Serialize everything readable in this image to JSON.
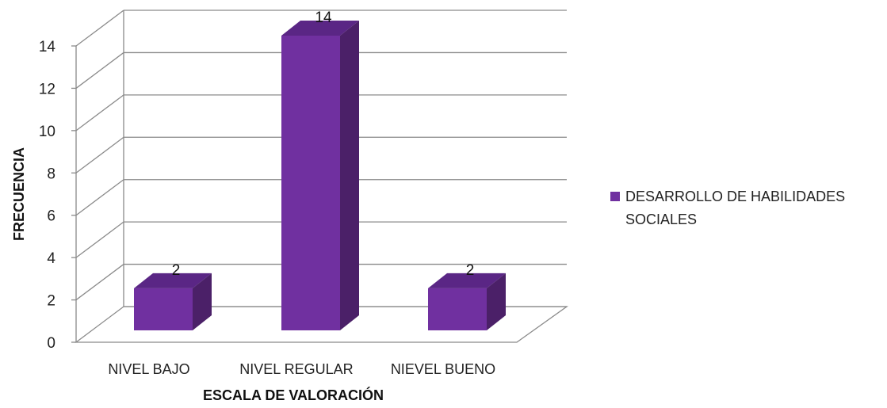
{
  "chart_data": {
    "type": "bar",
    "title": "",
    "xlabel": "ESCALA DE VALORACIÓN",
    "ylabel": "FRECUENCIA",
    "categories": [
      "NIVEL BAJO",
      "NIVEL REGULAR",
      "NIEVEL BUENO"
    ],
    "series": [
      {
        "name": "DESARROLLO DE HABILIDADES SOCIALES",
        "values": [
          2,
          14,
          2
        ],
        "color": "#7030A0"
      }
    ],
    "ylim": [
      0,
      14
    ],
    "yticks": [
      0,
      2,
      4,
      6,
      8,
      10,
      12,
      14
    ],
    "grid": true,
    "legend_position": "right",
    "style": "3d-column"
  },
  "legend": {
    "line1": "DESARROLLO DE HABILIDADES",
    "line2": "SOCIALES"
  }
}
